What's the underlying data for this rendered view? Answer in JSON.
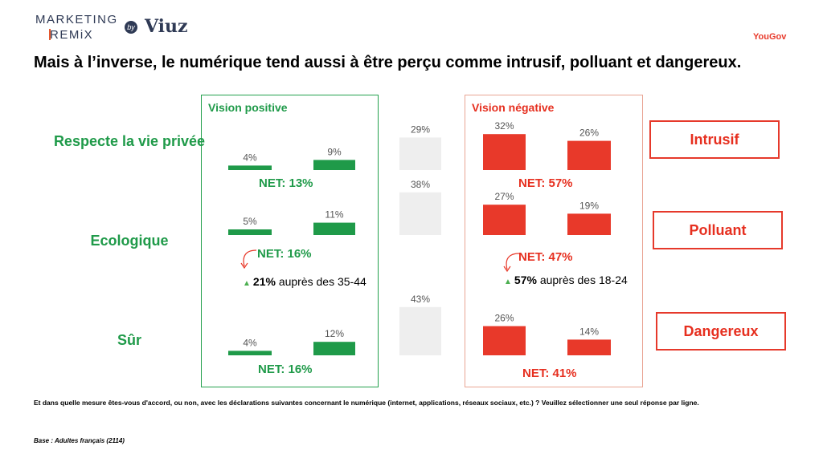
{
  "header": {
    "logo_marketing": "MARKETING",
    "logo_remix": "REMiX",
    "logo_by": "by",
    "logo_viuz": "Viuz",
    "brand": "YouGov"
  },
  "title": "Mais à l’inverse, le numérique tend aussi à être perçu comme intrusif, polluant et dangereux.",
  "panels": {
    "positive_title": "Vision positive",
    "negative_title": "Vision négative"
  },
  "rows": [
    {
      "label": "Respecte la vie privée",
      "net_positive": "NET: 13%",
      "net_negative": "NET: 57%",
      "negative_label": "Intrusif"
    },
    {
      "label": "Ecologique",
      "net_positive": "NET: 16%",
      "net_negative": "NET: 47%",
      "negative_label": "Polluant",
      "note_positive_value": "21%",
      "note_positive_text": "auprès des 35-44",
      "note_negative_value": "57%",
      "note_negative_text": "auprès des 18-24"
    },
    {
      "label": "Sûr",
      "net_positive": "NET: 16%",
      "net_negative": "NET: 41%",
      "negative_label": "Dangereux"
    }
  ],
  "footer": {
    "question": "Et dans quelle mesure êtes-vous d'accord, ou non, avec les déclarations suivantes concernant le numérique (internet, applications, réseaux sociaux, etc.) ? Veuillez sélectionner une seul réponse par ligne.",
    "base": "Base : Adultes français (2114)"
  },
  "colors": {
    "positive": "#1f9a49",
    "negative": "#e8392a",
    "neutral": "#eeeeee"
  },
  "chart_data": {
    "type": "bar",
    "categories": [
      "Respecte la vie privée",
      "Ecologique",
      "Sûr"
    ],
    "series": [
      {
        "values": [
          4,
          5,
          4
        ],
        "labels": [
          "4%",
          "5%",
          "4%"
        ]
      },
      {
        "values": [
          9,
          11,
          12
        ],
        "labels": [
          "9%",
          "11%",
          "12%"
        ]
      },
      {
        "values": [
          29,
          38,
          43
        ],
        "labels": [
          "29%",
          "38%",
          "43%"
        ]
      },
      {
        "values": [
          32,
          27,
          26
        ],
        "labels": [
          "32%",
          "27%",
          "26%"
        ]
      },
      {
        "values": [
          26,
          19,
          14
        ],
        "labels": [
          "26%",
          "19%",
          "14%"
        ]
      }
    ]
  }
}
